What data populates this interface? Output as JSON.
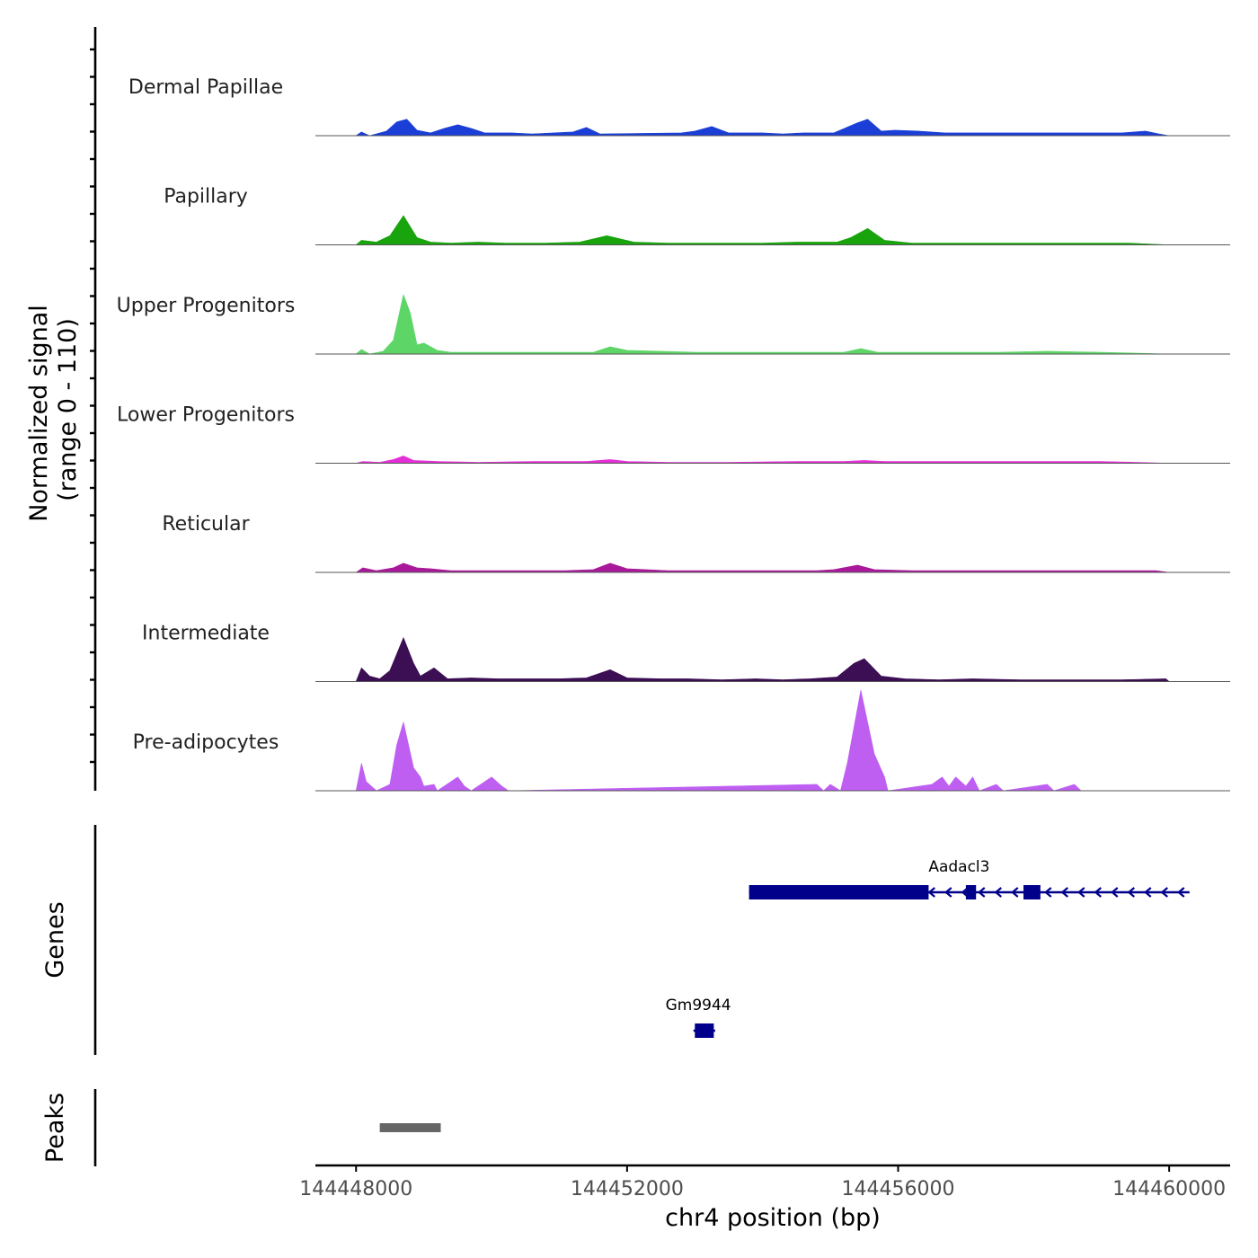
{
  "chart_data": {
    "type": "area",
    "title": "",
    "chromosome": "chr4",
    "xlabel": "chr4 position (bp)",
    "xlim": [
      144447400,
      144460900
    ],
    "xticks": [
      144448000,
      144452000,
      144456000,
      144460000
    ],
    "xtick_labels": [
      "144448000",
      "144452000",
      "144456000",
      "144460000"
    ],
    "coverage": {
      "ylabel_line1": "Normalized signal",
      "ylabel_line2": "(range 0 - 110)",
      "ylim": [
        0,
        110
      ],
      "tracks": [
        {
          "name": "Dermal Papillae",
          "color": "#1a3ed6",
          "profile": [
            [
              144448000,
              0
            ],
            [
              144448080,
              4
            ],
            [
              144448200,
              0
            ],
            [
              144448450,
              5
            ],
            [
              144448600,
              15
            ],
            [
              144448750,
              18
            ],
            [
              144448900,
              6
            ],
            [
              144449100,
              3
            ],
            [
              144449300,
              8
            ],
            [
              144449500,
              12
            ],
            [
              144449700,
              8
            ],
            [
              144449900,
              3
            ],
            [
              144450300,
              3
            ],
            [
              144450600,
              2
            ],
            [
              144451200,
              4
            ],
            [
              144451400,
              9
            ],
            [
              144451600,
              2
            ],
            [
              144452800,
              3
            ],
            [
              144453000,
              5
            ],
            [
              144453250,
              10
            ],
            [
              144453500,
              3
            ],
            [
              144453800,
              3
            ],
            [
              144454000,
              3
            ],
            [
              144454300,
              2
            ],
            [
              144454600,
              3
            ],
            [
              144455050,
              3
            ],
            [
              144455400,
              14
            ],
            [
              144455550,
              18
            ],
            [
              144455750,
              5
            ],
            [
              144455950,
              6
            ],
            [
              144456300,
              5
            ],
            [
              144456700,
              3
            ],
            [
              144457000,
              3
            ],
            [
              144457300,
              3
            ],
            [
              144458000,
              3
            ],
            [
              144458300,
              3
            ],
            [
              144458700,
              3
            ],
            [
              144459300,
              3
            ],
            [
              144459650,
              5
            ],
            [
              144459850,
              2
            ],
            [
              144460000,
              0
            ]
          ]
        },
        {
          "name": "Papillary",
          "color": "#19a30d",
          "profile": [
            [
              144448000,
              0
            ],
            [
              144448080,
              5
            ],
            [
              144448300,
              3
            ],
            [
              144448500,
              10
            ],
            [
              144448700,
              32
            ],
            [
              144448900,
              8
            ],
            [
              144449100,
              3
            ],
            [
              144449400,
              2
            ],
            [
              144449800,
              3
            ],
            [
              144450200,
              2
            ],
            [
              144450800,
              2
            ],
            [
              144451300,
              3
            ],
            [
              144451700,
              10
            ],
            [
              144452100,
              3
            ],
            [
              144452600,
              2
            ],
            [
              144453000,
              2
            ],
            [
              144453500,
              2
            ],
            [
              144454000,
              2
            ],
            [
              144454500,
              3
            ],
            [
              144455100,
              3
            ],
            [
              144455300,
              8
            ],
            [
              144455550,
              18
            ],
            [
              144455800,
              5
            ],
            [
              144456200,
              2
            ],
            [
              144456700,
              2
            ],
            [
              144457200,
              2
            ],
            [
              144458000,
              2
            ],
            [
              144458800,
              2
            ],
            [
              144459400,
              2
            ],
            [
              144460000,
              0
            ]
          ]
        },
        {
          "name": "Upper Progenitors",
          "color": "#5dd667",
          "profile": [
            [
              144448000,
              0
            ],
            [
              144448080,
              5
            ],
            [
              144448200,
              0
            ],
            [
              144448400,
              3
            ],
            [
              144448550,
              15
            ],
            [
              144448700,
              65
            ],
            [
              144448800,
              45
            ],
            [
              144448900,
              10
            ],
            [
              144449000,
              12
            ],
            [
              144449200,
              4
            ],
            [
              144449400,
              2
            ],
            [
              144450200,
              2
            ],
            [
              144451000,
              2
            ],
            [
              144451500,
              2
            ],
            [
              144451750,
              8
            ],
            [
              144452000,
              4
            ],
            [
              144452500,
              3
            ],
            [
              144453000,
              2
            ],
            [
              144454000,
              2
            ],
            [
              144455200,
              2
            ],
            [
              144455450,
              6
            ],
            [
              144455700,
              2
            ],
            [
              144456500,
              2
            ],
            [
              144457500,
              2
            ],
            [
              144458200,
              3
            ],
            [
              144459000,
              2
            ],
            [
              144460000,
              0
            ]
          ]
        },
        {
          "name": "Lower Progenitors",
          "color": "#e42fd7",
          "profile": [
            [
              144448000,
              0
            ],
            [
              144448100,
              2
            ],
            [
              144448350,
              1
            ],
            [
              144448550,
              4
            ],
            [
              144448700,
              8
            ],
            [
              144448850,
              3
            ],
            [
              144449200,
              2
            ],
            [
              144449800,
              1
            ],
            [
              144450600,
              2
            ],
            [
              144451400,
              2
            ],
            [
              144451750,
              4
            ],
            [
              144452000,
              2
            ],
            [
              144452600,
              1
            ],
            [
              144453500,
              1
            ],
            [
              144454500,
              2
            ],
            [
              144455200,
              2
            ],
            [
              144455500,
              3
            ],
            [
              144455800,
              2
            ],
            [
              144456500,
              2
            ],
            [
              144457500,
              2
            ],
            [
              144458300,
              2
            ],
            [
              144459000,
              2
            ],
            [
              144460000,
              0
            ]
          ]
        },
        {
          "name": "Reticular",
          "color": "#a81a99",
          "profile": [
            [
              144448000,
              0
            ],
            [
              144448100,
              5
            ],
            [
              144448300,
              2
            ],
            [
              144448550,
              5
            ],
            [
              144448700,
              10
            ],
            [
              144448900,
              5
            ],
            [
              144449100,
              4
            ],
            [
              144449400,
              2
            ],
            [
              144450500,
              2
            ],
            [
              144451100,
              2
            ],
            [
              144451500,
              3
            ],
            [
              144451750,
              10
            ],
            [
              144452000,
              4
            ],
            [
              144452600,
              2
            ],
            [
              144453200,
              2
            ],
            [
              144454000,
              2
            ],
            [
              144454800,
              2
            ],
            [
              144455050,
              3
            ],
            [
              144455400,
              8
            ],
            [
              144455650,
              3
            ],
            [
              144456200,
              2
            ],
            [
              144457000,
              2
            ],
            [
              144458000,
              2
            ],
            [
              144458800,
              2
            ],
            [
              144459800,
              2
            ],
            [
              144460000,
              0
            ]
          ]
        },
        {
          "name": "Intermediate",
          "color": "#3c0e54",
          "profile": [
            [
              144448000,
              0
            ],
            [
              144448080,
              15
            ],
            [
              144448200,
              6
            ],
            [
              144448350,
              3
            ],
            [
              144448500,
              12
            ],
            [
              144448700,
              48
            ],
            [
              144448850,
              20
            ],
            [
              144448950,
              6
            ],
            [
              144449150,
              15
            ],
            [
              144449350,
              3
            ],
            [
              144449700,
              4
            ],
            [
              144450100,
              3
            ],
            [
              144450500,
              3
            ],
            [
              144451000,
              3
            ],
            [
              144451400,
              4
            ],
            [
              144451750,
              13
            ],
            [
              144452000,
              4
            ],
            [
              144452500,
              3
            ],
            [
              144452900,
              3
            ],
            [
              144453400,
              2
            ],
            [
              144453900,
              3
            ],
            [
              144454300,
              2
            ],
            [
              144454700,
              3
            ],
            [
              144455100,
              5
            ],
            [
              144455350,
              20
            ],
            [
              144455500,
              25
            ],
            [
              144455750,
              6
            ],
            [
              144456100,
              3
            ],
            [
              144456600,
              2
            ],
            [
              144457100,
              3
            ],
            [
              144457800,
              2
            ],
            [
              144458600,
              2
            ],
            [
              144459300,
              2
            ],
            [
              144459950,
              3
            ],
            [
              144460000,
              0
            ]
          ]
        },
        {
          "name": "Pre-adipocytes",
          "color": "#be5ff2",
          "profile": [
            [
              144448000,
              0
            ],
            [
              144448080,
              30
            ],
            [
              144448150,
              10
            ],
            [
              144448300,
              0
            ],
            [
              144448500,
              7
            ],
            [
              144448600,
              50
            ],
            [
              144448700,
              75
            ],
            [
              144448850,
              25
            ],
            [
              144448950,
              15
            ],
            [
              144449000,
              5
            ],
            [
              144449150,
              7
            ],
            [
              144449200,
              0
            ],
            [
              144449500,
              15
            ],
            [
              144449600,
              5
            ],
            [
              144449700,
              0
            ],
            [
              144450000,
              15
            ],
            [
              144450150,
              5
            ],
            [
              144450250,
              0
            ],
            [
              144454800,
              7
            ],
            [
              144454900,
              0
            ],
            [
              144455000,
              7
            ],
            [
              144455150,
              0
            ],
            [
              144455250,
              30
            ],
            [
              144455450,
              110
            ],
            [
              144455650,
              40
            ],
            [
              144455800,
              15
            ],
            [
              144455850,
              0
            ],
            [
              144456500,
              7
            ],
            [
              144456650,
              15
            ],
            [
              144456750,
              5
            ],
            [
              144456850,
              15
            ],
            [
              144457000,
              5
            ],
            [
              144457100,
              15
            ],
            [
              144457200,
              0
            ],
            [
              144457450,
              7
            ],
            [
              144457550,
              0
            ],
            [
              144458200,
              7
            ],
            [
              144458300,
              0
            ],
            [
              144458600,
              7
            ],
            [
              144458700,
              0
            ],
            [
              144460000,
              0
            ]
          ]
        }
      ]
    },
    "genes": {
      "ylabel": "Genes",
      "items": [
        {
          "name": "Aadacl3",
          "start": 144453800,
          "end": 144460300,
          "strand": "-",
          "exons": [
            [
              144453800,
              144456450
            ],
            [
              144457000,
              144457150
            ],
            [
              144457850,
              144458100
            ]
          ]
        },
        {
          "name": "Gm9944",
          "start": 144452980,
          "end": 144453300,
          "strand": "-",
          "exons": [
            [
              144453000,
              144453280
            ]
          ]
        }
      ]
    },
    "peaks": {
      "ylabel": "Peaks",
      "items": [
        [
          144448350,
          144449250
        ]
      ]
    }
  }
}
